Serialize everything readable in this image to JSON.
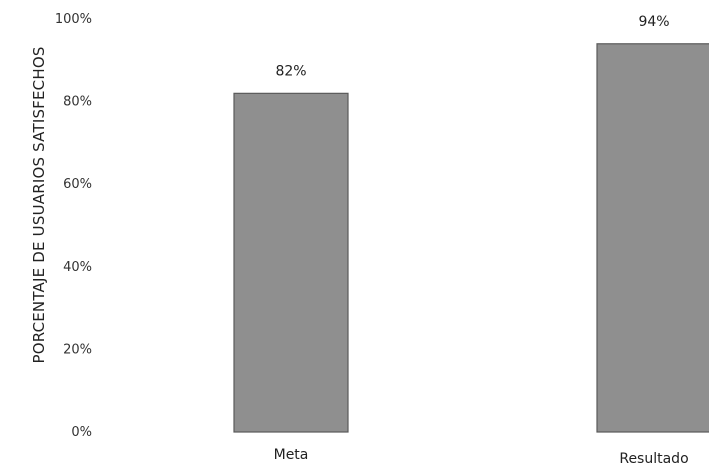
{
  "chart_data": {
    "type": "bar",
    "title": "",
    "xlabel": "",
    "ylabel": "PORCENTAJE DE USUARIOS SATISFECHOS",
    "categories": [
      "Meta",
      "Resultado"
    ],
    "values": [
      82,
      94
    ],
    "data_labels": [
      "82%",
      "94%"
    ],
    "ylim": [
      0,
      100
    ],
    "yticks": [
      0,
      20,
      40,
      60,
      80,
      100
    ],
    "ytick_labels": [
      "0%",
      "20%",
      "40%",
      "60%",
      "80%",
      "100%"
    ],
    "grid": false,
    "legend": "none",
    "bar_color": "#8f8f8f",
    "bar_edge_color": "#5a5a5a"
  }
}
